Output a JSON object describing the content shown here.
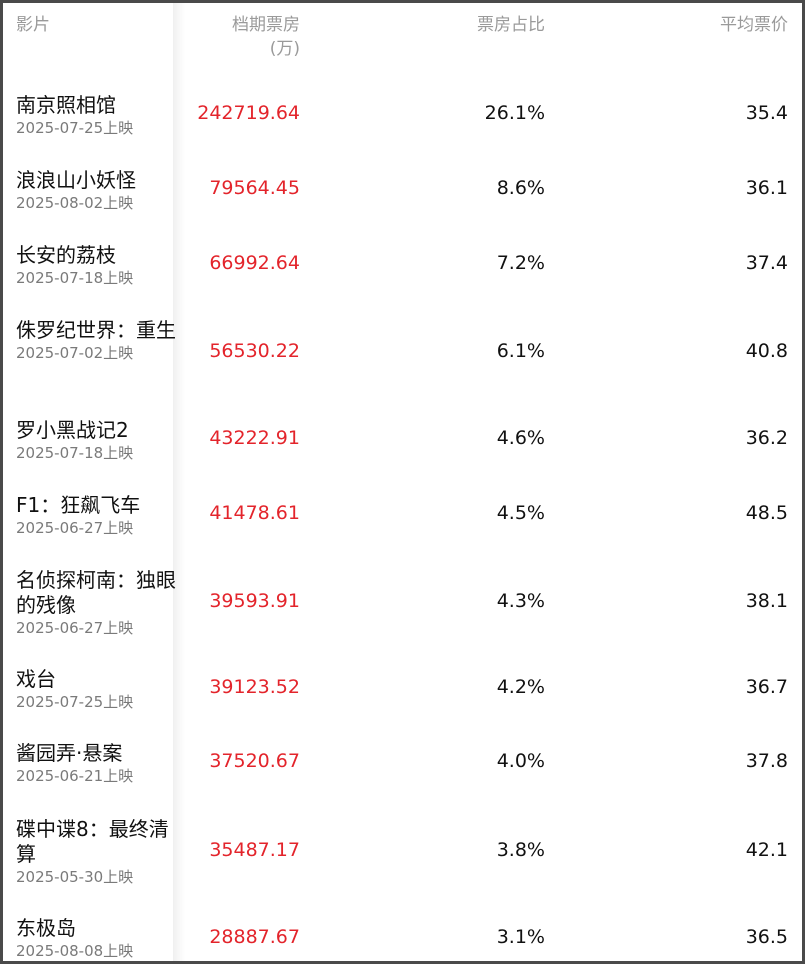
{
  "header": {
    "film": "影片",
    "box_office": "档期票房",
    "box_office_unit": "(万)",
    "share": "票房占比",
    "avg_price": "平均票价"
  },
  "rows": [
    {
      "title": "南京照相馆",
      "date": "2025-07-25上映",
      "box": "242719.64",
      "share": "26.1%",
      "price": "35.4"
    },
    {
      "title": "浪浪山小妖怪",
      "date": "2025-08-02上映",
      "box": "79564.45",
      "share": "8.6%",
      "price": "36.1"
    },
    {
      "title": "长安的荔枝",
      "date": "2025-07-18上映",
      "box": "66992.64",
      "share": "7.2%",
      "price": "37.4"
    },
    {
      "title": "侏罗纪世界：重生",
      "date": "2025-07-02上映",
      "box": "56530.22",
      "share": "6.1%",
      "price": "40.8"
    },
    {
      "title": "罗小黑战记2",
      "date": "2025-07-18上映",
      "box": "43222.91",
      "share": "4.6%",
      "price": "36.2"
    },
    {
      "title": "F1：狂飙飞车",
      "date": "2025-06-27上映",
      "box": "41478.61",
      "share": "4.5%",
      "price": "48.5"
    },
    {
      "title": "名侦探柯南：独眼的残像",
      "date": "2025-06-27上映",
      "box": "39593.91",
      "share": "4.3%",
      "price": "38.1"
    },
    {
      "title": "戏台",
      "date": "2025-07-25上映",
      "box": "39123.52",
      "share": "4.2%",
      "price": "36.7"
    },
    {
      "title": "酱园弄·悬案",
      "date": "2025-06-21上映",
      "box": "37520.67",
      "share": "4.0%",
      "price": "37.8"
    },
    {
      "title": "碟中谍8：最终清算",
      "date": "2025-05-30上映",
      "box": "35487.17",
      "share": "3.8%",
      "price": "42.1"
    },
    {
      "title": "东极岛",
      "date": "2025-08-08上映",
      "box": "28887.67",
      "share": "3.1%",
      "price": "36.5"
    }
  ]
}
